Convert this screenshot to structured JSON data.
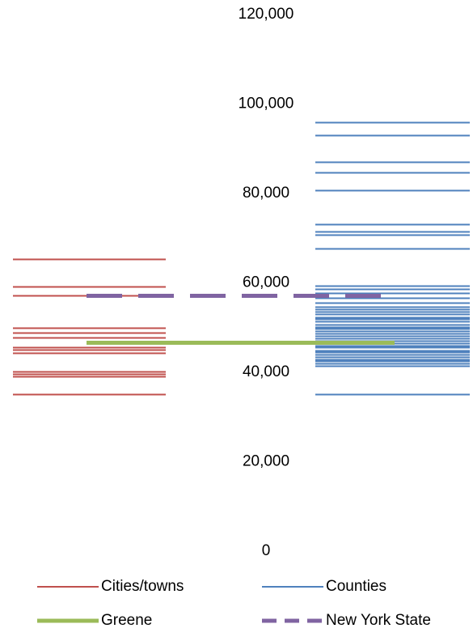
{
  "chart_data": {
    "type": "line",
    "title": "",
    "xlabel": "",
    "ylabel": "",
    "ylim": [
      0,
      120000
    ],
    "y_ticks": [
      "0",
      "20,000",
      "40,000",
      "60,000",
      "80,000",
      "100,000",
      "120,000"
    ],
    "y_tick_values": [
      0,
      20000,
      40000,
      60000,
      80000,
      100000,
      120000
    ],
    "grid": false,
    "legend_position": "bottom",
    "series": [
      {
        "name": "Cities/towns",
        "color": "#C0504D",
        "style": "solid",
        "column": "left",
        "values": [
          65000,
          58800,
          56800,
          49600,
          48500,
          47500,
          45300,
          44700,
          44000,
          39900,
          39300,
          38800,
          34800
        ]
      },
      {
        "name": "Counties",
        "color": "#4F81BD",
        "style": "solid",
        "column": "right",
        "values": [
          95600,
          92600,
          86700,
          84400,
          80400,
          72700,
          71200,
          70400,
          67300,
          59000,
          58300,
          57300,
          56300,
          55200,
          54300,
          53700,
          53200,
          52700,
          52000,
          51500,
          51000,
          50400,
          49800,
          49400,
          48800,
          48300,
          47800,
          47300,
          46700,
          46200,
          45700,
          45200,
          44600,
          44100,
          43600,
          43100,
          42600,
          42100,
          41600,
          41100,
          34800
        ]
      },
      {
        "name": "Greene",
        "color": "#9BBB59",
        "style": "thick",
        "column": "span",
        "values": [
          46400
        ]
      },
      {
        "name": "New York State",
        "color": "#8064A2",
        "style": "dashed",
        "column": "span",
        "values": [
          56800
        ]
      }
    ]
  }
}
